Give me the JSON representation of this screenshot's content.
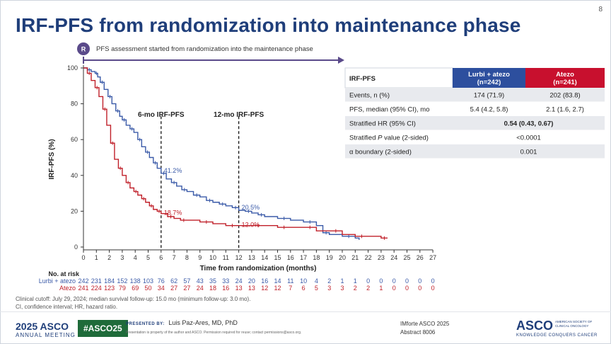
{
  "slide_number": "8",
  "title": "IRF-PFS from randomization into maintenance phase",
  "randomization_badge": "R",
  "randomization_note": "PFS assessment started from randomization into the maintenance phase",
  "colors": {
    "lurbi": "#3a5aa8",
    "atezo": "#c0202a",
    "title": "#1f3e7a",
    "header_lurbi": "#2d4f9e",
    "header_atezo": "#c8102e"
  },
  "chart_data": {
    "type": "line",
    "title": "",
    "xlabel": "Time from randomization (months)",
    "ylabel": "IRF-PFS (%)",
    "xlim": [
      0,
      27
    ],
    "ylim": [
      0,
      100
    ],
    "x_ticks": [
      "0",
      "1",
      "2",
      "3",
      "4",
      "5",
      "6",
      "7",
      "8",
      "9",
      "10",
      "11",
      "12",
      "13",
      "14",
      "15",
      "16",
      "17",
      "18",
      "19",
      "20",
      "21",
      "22",
      "23",
      "24",
      "25",
      "26",
      "27"
    ],
    "y_ticks": [
      "0",
      "20",
      "40",
      "60",
      "80",
      "100"
    ],
    "grid": false,
    "series": [
      {
        "name": "Lurbi + atezo",
        "color": "#3a5aa8",
        "x": [
          0,
          0.3,
          0.6,
          0.9,
          1.1,
          1.3,
          1.6,
          1.9,
          2.2,
          2.5,
          2.8,
          3.0,
          3.3,
          3.6,
          3.9,
          4.2,
          4.5,
          4.8,
          5.1,
          5.4,
          5.7,
          6.0,
          6.4,
          6.8,
          7.2,
          7.6,
          8.0,
          8.5,
          9.0,
          9.5,
          10.0,
          10.5,
          11.0,
          11.5,
          12.0,
          12.5,
          13.0,
          13.5,
          14.0,
          15.0,
          16.0,
          17.0,
          18.0,
          18.5,
          19.0,
          20.0,
          21.0,
          21.3
        ],
        "y": [
          100,
          99,
          98,
          97,
          95,
          92,
          88,
          84,
          80,
          76,
          73,
          71,
          68,
          66,
          64,
          60,
          56,
          53,
          50,
          47,
          44,
          41.2,
          38,
          36,
          34,
          32,
          31,
          29,
          28,
          26,
          25,
          24,
          23,
          22,
          20.5,
          20,
          19,
          18,
          17,
          16,
          15,
          14,
          12,
          8,
          7,
          6,
          5,
          4
        ]
      },
      {
        "name": "Atezo",
        "color": "#c0202a",
        "x": [
          0,
          0.3,
          0.6,
          0.9,
          1.2,
          1.5,
          1.8,
          2.1,
          2.4,
          2.7,
          3.0,
          3.3,
          3.6,
          3.9,
          4.2,
          4.5,
          4.8,
          5.1,
          5.4,
          5.7,
          6.0,
          6.5,
          7.0,
          7.5,
          8.0,
          9.0,
          10.0,
          11.0,
          12.0,
          13.0,
          14.0,
          15.0,
          16.0,
          17.0,
          18.0,
          19.0,
          20.0,
          21.0,
          22.0,
          23.0,
          23.5
        ],
        "y": [
          100,
          97,
          93,
          89,
          84,
          77,
          68,
          58,
          49,
          44,
          40,
          36,
          33,
          31,
          29,
          27,
          25,
          23,
          21,
          20,
          18.7,
          17,
          16,
          15,
          15,
          14,
          13,
          12,
          12,
          12,
          12,
          11,
          11,
          11,
          9,
          9,
          7,
          6,
          6,
          5,
          5
        ]
      }
    ],
    "annotations": [
      {
        "label": "6-mo IRF-PFS",
        "x": 6,
        "values": [
          "41.2%",
          "18.7%"
        ]
      },
      {
        "label": "12-mo IRF-PFS",
        "x": 12,
        "values": [
          "20.5%",
          "12.0%"
        ]
      }
    ]
  },
  "risk_table": {
    "header": "No. at risk",
    "rows": [
      {
        "label": "Lurbi + atezo",
        "values": [
          "242",
          "231",
          "184",
          "152",
          "138",
          "103",
          "76",
          "62",
          "57",
          "43",
          "35",
          "33",
          "24",
          "20",
          "16",
          "14",
          "11",
          "10",
          "4",
          "2",
          "1",
          "1",
          "0",
          "0",
          "0",
          "0",
          "0",
          "0"
        ]
      },
      {
        "label": "Atezo",
        "values": [
          "241",
          "224",
          "123",
          "79",
          "69",
          "50",
          "34",
          "27",
          "27",
          "24",
          "18",
          "16",
          "13",
          "13",
          "12",
          "12",
          "7",
          "6",
          "5",
          "3",
          "3",
          "2",
          "2",
          "1",
          "0",
          "0",
          "0",
          "0"
        ]
      }
    ]
  },
  "stats_table": {
    "headers": [
      "IRF-PFS",
      "Lurbi + atezo\n(n=242)",
      "Atezo\n(n=241)"
    ],
    "header_lines": [
      [
        "IRF-PFS"
      ],
      [
        "Lurbi + atezo",
        "(n=242)"
      ],
      [
        "Atezo",
        "(n=241)"
      ]
    ],
    "rows": [
      {
        "label": "Events, n (%)",
        "lurbi": "174 (71.9)",
        "atezo": "202 (83.8)"
      },
      {
        "label": "PFS, median (95% CI), mo",
        "lurbi": "5.4 (4.2, 5.8)",
        "atezo": "2.1 (1.6, 2.7)"
      },
      {
        "label": "Stratified HR (95% CI)",
        "merged": "0.54 (0.43, 0.67)",
        "bold": true
      },
      {
        "label_pre": "Stratified ",
        "label_italic": "P",
        "label_post": " value (2-sided)",
        "merged": "<0.0001"
      },
      {
        "label": "α boundary (2-sided)",
        "merged": "0.001"
      }
    ]
  },
  "footnotes": [
    "Clinical cutoff: July 29, 2024; median survival follow-up: 15.0 mo (minimum follow-up: 3.0 mo).",
    "CI, confidence interval; HR, hazard ratio."
  ],
  "footer": {
    "year_brand": "2025 ASCO",
    "meeting": "ANNUAL MEETING",
    "hashtag": "#ASCO25",
    "presented_by": "PRESENTED BY:",
    "presenter": "Luis Paz-Ares, MD, PhD",
    "notice": "Presentation is property of the author and ASCO. Permission required for reuse; contact permissions@asco.org.",
    "ref_line1": "IMforte ASCO 2025",
    "ref_line2": "Abstract 8006",
    "brand": "ASCO",
    "society": "AMERICAN SOCIETY OF CLINICAL ONCOLOGY",
    "tagline": "KNOWLEDGE CONQUERS CANCER"
  }
}
